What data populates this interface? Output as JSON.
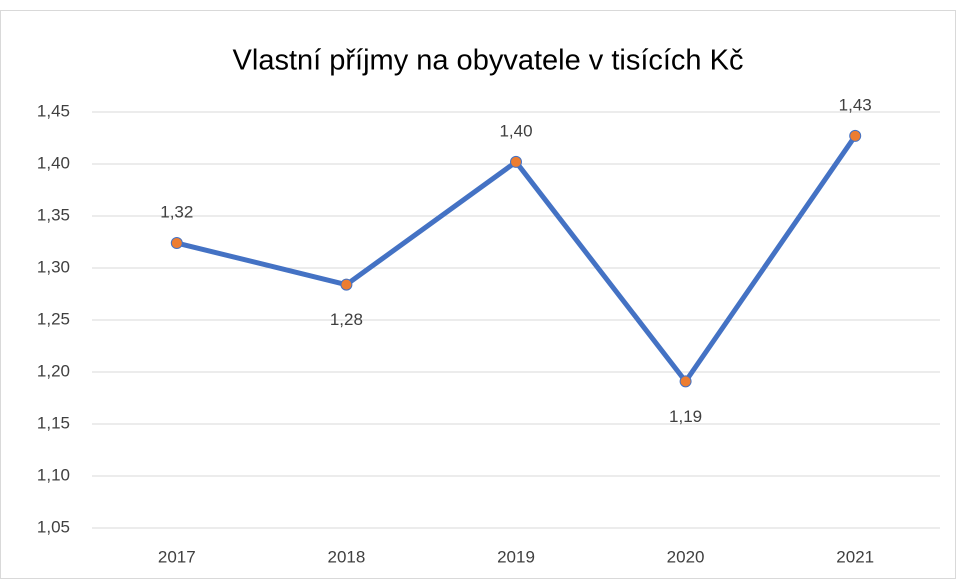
{
  "chart_data": {
    "type": "line",
    "title": "Vlastní příjmy na obyvatele v tisících Kč",
    "categories": [
      "2017",
      "2018",
      "2019",
      "2020",
      "2021"
    ],
    "series": [
      {
        "color": "#4472c4",
        "marker_color": "#ed7d31",
        "values": [
          1.324,
          1.284,
          1.402,
          1.191,
          1.427
        ],
        "value_labels": [
          "1,32",
          "1,28",
          "1,40",
          "1,19",
          "1,43"
        ]
      }
    ],
    "ylim": [
      1.05,
      1.45
    ],
    "yticks": [
      {
        "value": 1.05,
        "label": "1,05"
      },
      {
        "value": 1.1,
        "label": "1,10"
      },
      {
        "value": 1.15,
        "label": "1,15"
      },
      {
        "value": 1.2,
        "label": "1,20"
      },
      {
        "value": 1.25,
        "label": "1,25"
      },
      {
        "value": 1.3,
        "label": "1,30"
      },
      {
        "value": 1.35,
        "label": "1,35"
      },
      {
        "value": 1.4,
        "label": "1,40"
      },
      {
        "value": 1.45,
        "label": "1,45"
      }
    ],
    "grid": true
  }
}
